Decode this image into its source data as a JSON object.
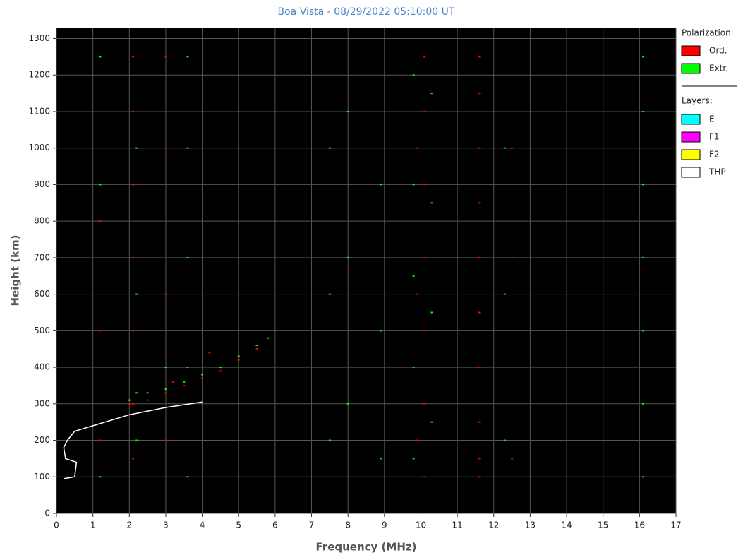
{
  "chart_data": {
    "type": "scatter",
    "title": "Boa Vista - 08/29/2022 05:10:00 UT",
    "x_label": "Frequency (MHz)",
    "y_label": "Height (km)",
    "xlim": [
      0,
      17
    ],
    "ylim": [
      0,
      1330
    ],
    "xticks": [
      0,
      1,
      2,
      3,
      4,
      5,
      6,
      7,
      8,
      9,
      10,
      11,
      12,
      13,
      14,
      15,
      16,
      17
    ],
    "yticks": [
      0,
      100,
      200,
      300,
      400,
      500,
      600,
      700,
      800,
      900,
      1000,
      1100,
      1200,
      1300
    ],
    "grid": true,
    "legend_title": "Polarization",
    "layers_title": "Layers:",
    "layers": [
      {
        "name": "E",
        "color": "#00ffff"
      },
      {
        "name": "F1",
        "color": "#ff00ff"
      },
      {
        "name": "F2",
        "color": "#ffff00"
      }
    ],
    "series": [
      {
        "name": "Ord.",
        "color": "#ff0000",
        "x": [
          11.6,
          11.6,
          11.6,
          11.6,
          11.6,
          11.6,
          11.6,
          11.6,
          11.6,
          11.6,
          2,
          2.5,
          3,
          3.5,
          4,
          4.5,
          5,
          5.5,
          4.2,
          3.2,
          2.1,
          2.1,
          2.1,
          2.1,
          2.1,
          2.1,
          2.1,
          1.2,
          1.2,
          1.2,
          3,
          3,
          3,
          3,
          10.1,
          10.1,
          10.1,
          10.1,
          10.1,
          10.1,
          10.1,
          12.5,
          12.5,
          12.5,
          12.5,
          9.9,
          9.9,
          9.9
        ],
        "values": [
          100,
          150,
          250,
          400,
          550,
          700,
          850,
          1000,
          1150,
          1250,
          300,
          310,
          330,
          350,
          370,
          390,
          420,
          450,
          440,
          360,
          150,
          300,
          500,
          700,
          900,
          1100,
          1250,
          200,
          500,
          800,
          200,
          600,
          1000,
          1250,
          100,
          300,
          500,
          700,
          900,
          1100,
          1250,
          150,
          400,
          700,
          1000,
          200,
          600,
          1000
        ]
      },
      {
        "name": "Extr.",
        "color": "#00ff00",
        "x": [
          2,
          2.5,
          3,
          3.5,
          4,
          4.5,
          5,
          5.5,
          5.8,
          3,
          2.2,
          16.1,
          16.1,
          16.1,
          16.1,
          16.1,
          16.1,
          16.1,
          9.8,
          9.8,
          9.8,
          9.8,
          9.8,
          10.3,
          10.3,
          10.3,
          10.3,
          7.5,
          7.5,
          7.5,
          8,
          8,
          8,
          8.9,
          8.9,
          8.9,
          3.6,
          3.6,
          3.6,
          3.6,
          3.6,
          2.2,
          2.2,
          2.2,
          1.2,
          1.2,
          1.2,
          12.3,
          12.3,
          12.3
        ],
        "values": [
          310,
          330,
          340,
          360,
          380,
          400,
          430,
          460,
          480,
          400,
          330,
          100,
          300,
          500,
          700,
          900,
          1100,
          1250,
          150,
          400,
          650,
          900,
          1200,
          250,
          550,
          850,
          1150,
          200,
          600,
          1000,
          300,
          700,
          1100,
          150,
          500,
          900,
          100,
          400,
          700,
          1000,
          1250,
          200,
          600,
          1000,
          100,
          900,
          1250,
          200,
          600,
          1000
        ]
      },
      {
        "name": "THP",
        "type": "line",
        "color": "#ffffff",
        "x": [
          0.2,
          0.5,
          0.55,
          0.25,
          0.2,
          0.3,
          0.5,
          1.0,
          2.0,
          3.0,
          4.0
        ],
        "values": [
          95,
          100,
          140,
          150,
          180,
          200,
          225,
          240,
          270,
          290,
          305
        ]
      }
    ]
  }
}
